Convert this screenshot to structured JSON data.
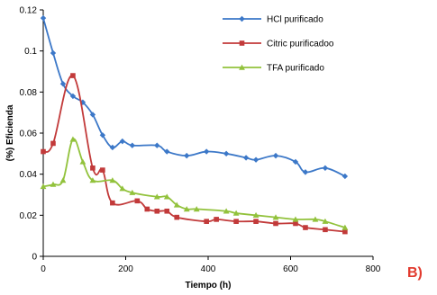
{
  "chart_data": {
    "type": "line",
    "title": "",
    "xlabel": "Tiempo (h)",
    "ylabel": "(%) Eficienda",
    "xlim": [
      0,
      800
    ],
    "ylim": [
      0,
      0.12
    ],
    "x_ticks": [
      "0",
      "200",
      "400",
      "600",
      "800"
    ],
    "y_ticks": [
      "0",
      "0.02",
      "0.04",
      "0.06",
      "0.08",
      "0.1",
      "0.12"
    ],
    "grid": false,
    "legend_position": "top-right",
    "series": [
      {
        "name": "HCl purificado",
        "color": "#3c78c8",
        "marker": "diamond",
        "x": [
          0,
          24,
          48,
          72,
          96,
          120,
          144,
          168,
          192,
          216,
          276,
          300,
          348,
          396,
          444,
          492,
          516,
          564,
          612,
          636,
          684,
          732
        ],
        "y": [
          0.116,
          0.099,
          0.084,
          0.078,
          0.075,
          0.069,
          0.059,
          0.053,
          0.056,
          0.054,
          0.054,
          0.051,
          0.049,
          0.051,
          0.05,
          0.048,
          0.047,
          0.049,
          0.046,
          0.041,
          0.043,
          0.039
        ]
      },
      {
        "name": "Citric purificadoo",
        "color": "#c23a3a",
        "marker": "square",
        "x": [
          0,
          24,
          72,
          120,
          144,
          168,
          228,
          252,
          276,
          300,
          324,
          396,
          420,
          468,
          516,
          564,
          612,
          636,
          684,
          732
        ],
        "y": [
          0.051,
          0.055,
          0.088,
          0.043,
          0.042,
          0.026,
          0.027,
          0.023,
          0.022,
          0.022,
          0.019,
          0.017,
          0.018,
          0.017,
          0.017,
          0.016,
          0.016,
          0.014,
          0.013,
          0.012
        ]
      },
      {
        "name": "TFA purificado",
        "color": "#92c23c",
        "marker": "triangle",
        "x": [
          0,
          24,
          48,
          72,
          96,
          120,
          168,
          192,
          216,
          276,
          300,
          324,
          348,
          372,
          444,
          468,
          516,
          564,
          612,
          660,
          684,
          732
        ],
        "y": [
          0.034,
          0.035,
          0.037,
          0.057,
          0.046,
          0.037,
          0.037,
          0.033,
          0.031,
          0.029,
          0.029,
          0.025,
          0.023,
          0.023,
          0.022,
          0.021,
          0.02,
          0.019,
          0.018,
          0.018,
          0.017,
          0.014
        ]
      }
    ]
  },
  "panel_label": "B)"
}
